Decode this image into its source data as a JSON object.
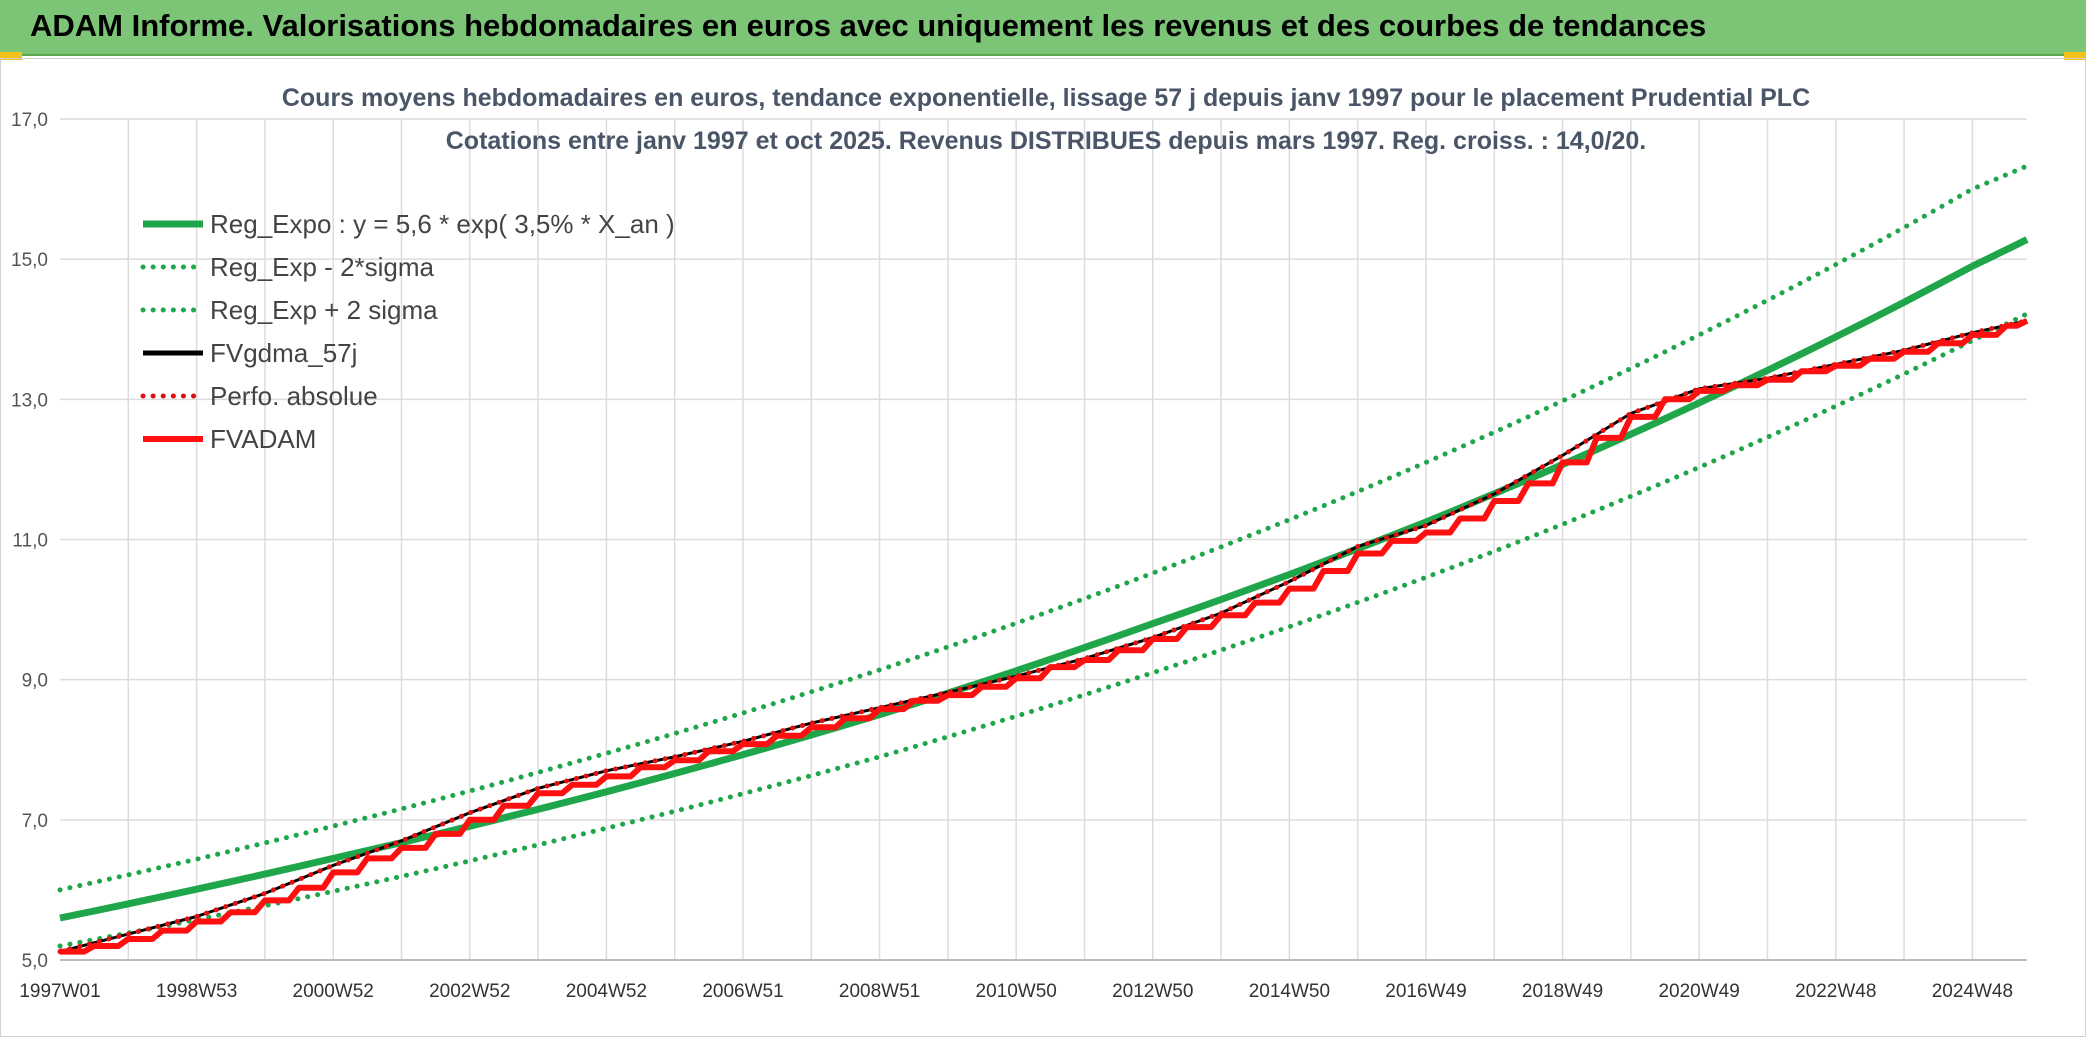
{
  "banner": {
    "title": "ADAM Informe. Valorisations hebdomadaires en euros avec uniquement les revenus et des courbes de tendances"
  },
  "colors": {
    "banner_bg": "#7cc576",
    "trend": "#1fa64a",
    "fvgdma": "#000000",
    "perfo": "#e01010",
    "fvadam": "#ff1010",
    "grid": "#dcdcdc"
  },
  "chart_data": {
    "type": "line",
    "title": "Cours moyens hebdomadaires en euros, tendance exponentielle, lissage 57 j depuis janv 1997 pour le placement Prudential PLC",
    "subtitle": "Cotations entre janv 1997 et oct 2025. Revenus DISTRIBUES depuis mars 1997. Reg. croiss. : 14,0/20.",
    "xlabel": "",
    "ylabel": "",
    "ylim": [
      5.0,
      17.0
    ],
    "y_ticks": [
      "5,0",
      "7,0",
      "9,0",
      "11,0",
      "13,0",
      "15,0",
      "17,0"
    ],
    "x_range": [
      1997.0,
      2025.8
    ],
    "x_ticks": [
      {
        "label": "1997W01",
        "year": 1997.0
      },
      {
        "label": "1998W53",
        "year": 1999.0
      },
      {
        "label": "2000W52",
        "year": 2001.0
      },
      {
        "label": "2002W52",
        "year": 2003.0
      },
      {
        "label": "2004W52",
        "year": 2005.0
      },
      {
        "label": "2006W51",
        "year": 2007.0
      },
      {
        "label": "2008W51",
        "year": 2009.0
      },
      {
        "label": "2010W50",
        "year": 2011.0
      },
      {
        "label": "2012W50",
        "year": 2013.0
      },
      {
        "label": "2014W50",
        "year": 2015.0
      },
      {
        "label": "2016W49",
        "year": 2017.0
      },
      {
        "label": "2018W49",
        "year": 2019.0
      },
      {
        "label": "2020W49",
        "year": 2021.0
      },
      {
        "label": "2022W48",
        "year": 2023.0
      },
      {
        "label": "2024W48",
        "year": 2025.0
      }
    ],
    "grid": true,
    "legend_position": "top-left",
    "series": [
      {
        "name": "Reg_Expo : y = 5,6 * exp( 3,5% *  X_an )",
        "style": "solid-thick",
        "color": "#1fa64a",
        "points": [
          [
            1997.0,
            5.6
          ],
          [
            2001.0,
            6.45
          ],
          [
            2005.0,
            7.4
          ],
          [
            2009.0,
            8.5
          ],
          [
            2013.0,
            9.8
          ],
          [
            2017.0,
            11.25
          ],
          [
            2021.0,
            12.95
          ],
          [
            2025.0,
            14.9
          ],
          [
            2025.8,
            15.28
          ]
        ]
      },
      {
        "name": "Reg_Exp - 2*sigma",
        "style": "dotted",
        "color": "#1fa64a",
        "points": [
          [
            1997.0,
            5.2
          ],
          [
            2001.0,
            5.98
          ],
          [
            2005.0,
            6.88
          ],
          [
            2009.0,
            7.9
          ],
          [
            2013.0,
            9.1
          ],
          [
            2017.0,
            10.46
          ],
          [
            2021.0,
            12.03
          ],
          [
            2025.0,
            13.84
          ],
          [
            2025.8,
            14.22
          ]
        ]
      },
      {
        "name": "Reg_Exp + 2 sigma",
        "style": "dotted",
        "color": "#1fa64a",
        "points": [
          [
            1997.0,
            6.0
          ],
          [
            2001.0,
            6.91
          ],
          [
            2005.0,
            7.95
          ],
          [
            2009.0,
            9.14
          ],
          [
            2013.0,
            10.52
          ],
          [
            2017.0,
            12.1
          ],
          [
            2021.0,
            13.92
          ],
          [
            2025.0,
            16.0
          ],
          [
            2025.8,
            16.33
          ]
        ]
      },
      {
        "name": "FVgdma_57j",
        "style": "solid",
        "color": "#000000",
        "points": [
          [
            1997.0,
            5.12
          ],
          [
            1999.0,
            5.62
          ],
          [
            2000.0,
            5.95
          ],
          [
            2001.0,
            6.35
          ],
          [
            2002.0,
            6.7
          ],
          [
            2003.0,
            7.1
          ],
          [
            2004.0,
            7.45
          ],
          [
            2005.0,
            7.7
          ],
          [
            2006.0,
            7.9
          ],
          [
            2007.0,
            8.12
          ],
          [
            2008.0,
            8.38
          ],
          [
            2009.0,
            8.6
          ],
          [
            2010.0,
            8.82
          ],
          [
            2011.0,
            9.05
          ],
          [
            2012.0,
            9.3
          ],
          [
            2013.0,
            9.6
          ],
          [
            2014.0,
            9.95
          ],
          [
            2015.0,
            10.4
          ],
          [
            2016.0,
            10.9
          ],
          [
            2017.0,
            11.2
          ],
          [
            2018.0,
            11.65
          ],
          [
            2019.0,
            12.2
          ],
          [
            2020.0,
            12.8
          ],
          [
            2021.0,
            13.15
          ],
          [
            2022.0,
            13.3
          ],
          [
            2023.0,
            13.5
          ],
          [
            2024.0,
            13.7
          ],
          [
            2025.0,
            13.95
          ],
          [
            2025.8,
            14.12
          ]
        ]
      },
      {
        "name": "Perfo. absolue",
        "style": "dotted",
        "color": "#e01010",
        "points": [
          [
            1997.0,
            5.12
          ],
          [
            1999.0,
            5.62
          ],
          [
            2000.0,
            5.95
          ],
          [
            2001.0,
            6.35
          ],
          [
            2002.0,
            6.7
          ],
          [
            2003.0,
            7.1
          ],
          [
            2004.0,
            7.45
          ],
          [
            2005.0,
            7.7
          ],
          [
            2006.0,
            7.9
          ],
          [
            2007.0,
            8.12
          ],
          [
            2008.0,
            8.38
          ],
          [
            2009.0,
            8.6
          ],
          [
            2010.0,
            8.82
          ],
          [
            2011.0,
            9.05
          ],
          [
            2012.0,
            9.3
          ],
          [
            2013.0,
            9.6
          ],
          [
            2014.0,
            9.95
          ],
          [
            2015.0,
            10.4
          ],
          [
            2016.0,
            10.9
          ],
          [
            2017.0,
            11.2
          ],
          [
            2018.0,
            11.65
          ],
          [
            2019.0,
            12.2
          ],
          [
            2020.0,
            12.8
          ],
          [
            2021.0,
            13.15
          ],
          [
            2022.0,
            13.3
          ],
          [
            2023.0,
            13.5
          ],
          [
            2024.0,
            13.7
          ],
          [
            2025.0,
            13.95
          ],
          [
            2025.8,
            14.12
          ]
        ]
      },
      {
        "name": "FVADAM",
        "style": "steps-thick",
        "color": "#ff1010",
        "points": [
          [
            1997.0,
            5.12
          ],
          [
            1997.5,
            5.2
          ],
          [
            1998.0,
            5.3
          ],
          [
            1998.5,
            5.42
          ],
          [
            1999.0,
            5.55
          ],
          [
            1999.5,
            5.68
          ],
          [
            2000.0,
            5.85
          ],
          [
            2000.5,
            6.03
          ],
          [
            2001.0,
            6.25
          ],
          [
            2001.5,
            6.45
          ],
          [
            2002.0,
            6.6
          ],
          [
            2002.5,
            6.8
          ],
          [
            2003.0,
            7.0
          ],
          [
            2003.5,
            7.2
          ],
          [
            2004.0,
            7.38
          ],
          [
            2004.5,
            7.5
          ],
          [
            2005.0,
            7.62
          ],
          [
            2005.5,
            7.75
          ],
          [
            2006.0,
            7.85
          ],
          [
            2006.5,
            7.98
          ],
          [
            2007.0,
            8.08
          ],
          [
            2007.5,
            8.2
          ],
          [
            2008.0,
            8.32
          ],
          [
            2008.5,
            8.45
          ],
          [
            2009.0,
            8.58
          ],
          [
            2009.5,
            8.7
          ],
          [
            2010.0,
            8.78
          ],
          [
            2010.5,
            8.9
          ],
          [
            2011.0,
            9.02
          ],
          [
            2011.5,
            9.18
          ],
          [
            2012.0,
            9.28
          ],
          [
            2012.5,
            9.42
          ],
          [
            2013.0,
            9.58
          ],
          [
            2013.5,
            9.75
          ],
          [
            2014.0,
            9.92
          ],
          [
            2014.5,
            10.1
          ],
          [
            2015.0,
            10.3
          ],
          [
            2015.5,
            10.55
          ],
          [
            2016.0,
            10.8
          ],
          [
            2016.5,
            10.98
          ],
          [
            2017.0,
            11.1
          ],
          [
            2017.5,
            11.3
          ],
          [
            2018.0,
            11.55
          ],
          [
            2018.5,
            11.8
          ],
          [
            2019.0,
            12.1
          ],
          [
            2019.5,
            12.45
          ],
          [
            2020.0,
            12.75
          ],
          [
            2020.5,
            13.0
          ],
          [
            2021.0,
            13.12
          ],
          [
            2021.5,
            13.2
          ],
          [
            2022.0,
            13.28
          ],
          [
            2022.5,
            13.4
          ],
          [
            2023.0,
            13.48
          ],
          [
            2023.5,
            13.58
          ],
          [
            2024.0,
            13.68
          ],
          [
            2024.5,
            13.8
          ],
          [
            2025.0,
            13.92
          ],
          [
            2025.5,
            14.05
          ],
          [
            2025.8,
            14.12
          ]
        ]
      }
    ]
  }
}
